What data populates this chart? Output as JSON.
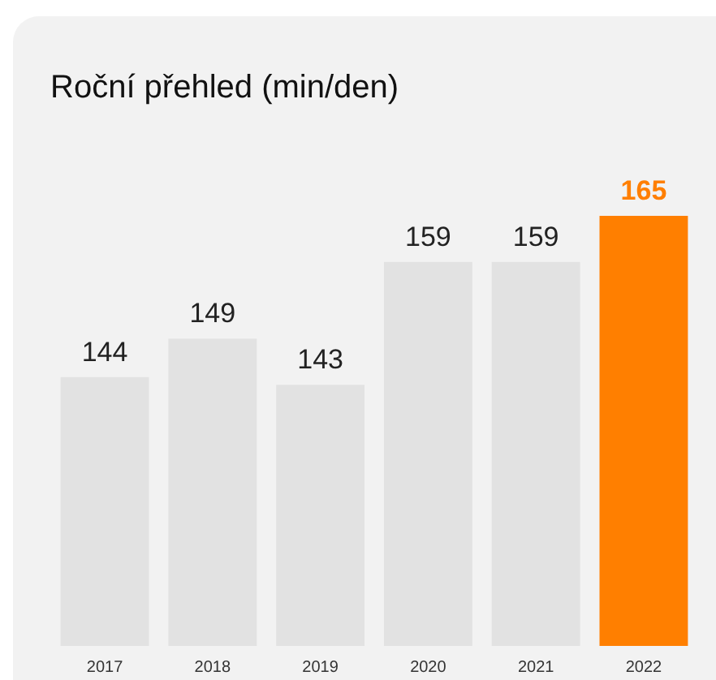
{
  "chart_data": {
    "type": "bar",
    "title": "Roční přehled (min/den)",
    "categories": [
      "2017",
      "2018",
      "2019",
      "2020",
      "2021",
      "2022"
    ],
    "values": [
      144,
      149,
      143,
      159,
      159,
      165
    ],
    "colors": [
      "#e2e2e2",
      "#e2e2e2",
      "#e2e2e2",
      "#e2e2e2",
      "#e2e2e2",
      "#ff7f00"
    ],
    "ylim": [
      109,
      165
    ],
    "data_labels": true,
    "tick_labels": "x"
  }
}
